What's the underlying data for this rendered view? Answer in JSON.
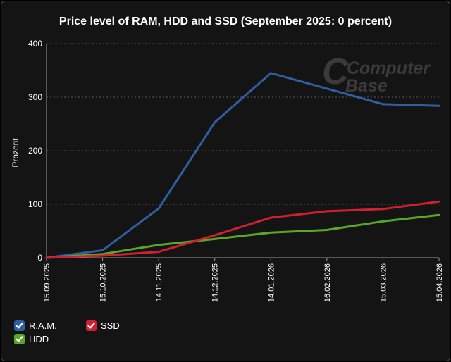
{
  "chart_data": {
    "type": "line",
    "title": "Price level of RAM, HDD and SSD (September 2025: 0 percent)",
    "ylabel": "Prozent",
    "xlabel": "",
    "ylim": [
      0,
      400
    ],
    "yticks": [
      0,
      100,
      200,
      300,
      400
    ],
    "x": [
      "15.09.2025",
      "15.10.2025",
      "14.11.2025",
      "14.12.2025",
      "14.01.2026",
      "16.02.2026",
      "15.03.2026",
      "15.04.2026"
    ],
    "series": [
      {
        "name": "R.A.M.",
        "color": "#2f5fa0",
        "values": [
          0,
          14,
          92,
          253,
          345,
          316,
          287,
          284
        ]
      },
      {
        "name": "SSD",
        "color": "#d11f32",
        "values": [
          0,
          4,
          11,
          42,
          75,
          87,
          91,
          105
        ]
      },
      {
        "name": "HDD",
        "color": "#5aa726",
        "values": [
          0,
          7,
          24,
          35,
          47,
          52,
          68,
          80
        ]
      }
    ],
    "grid": true,
    "legend_position": "bottom-left"
  },
  "watermark": {
    "line1": "Computer",
    "line2": "Base"
  }
}
